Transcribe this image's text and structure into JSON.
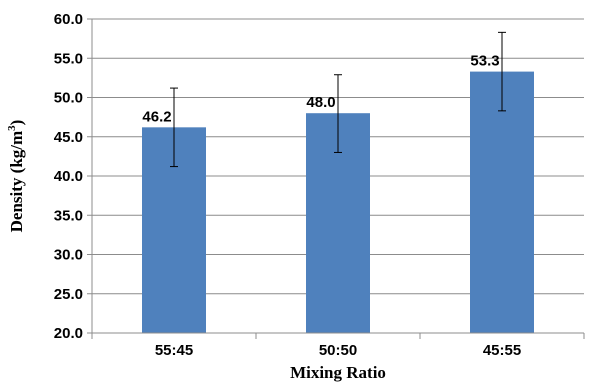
{
  "chart_data": {
    "type": "bar",
    "categories": [
      "55:45",
      "50:50",
      "45:55"
    ],
    "values": [
      46.2,
      48.0,
      53.3
    ],
    "value_labels": [
      "46.2",
      "48.0",
      "53.3"
    ],
    "error_bars": [
      {
        "low": 41.2,
        "high": 51.2
      },
      {
        "low": 43.0,
        "high": 52.9
      },
      {
        "low": 48.3,
        "high": 58.3
      }
    ],
    "xlabel": "Mixing Ratio",
    "ylabel_main": "Density (kg/m",
    "ylabel_sup": "3",
    "ylabel_end": ")",
    "ylim": [
      20.0,
      60.0
    ],
    "yticks": [
      "20.0",
      "25.0",
      "30.0",
      "35.0",
      "40.0",
      "45.0",
      "50.0",
      "55.0",
      "60.0"
    ],
    "grid": true,
    "legend": "none",
    "bar_color": "#4F81BD",
    "grid_color": "#8C8C8C"
  }
}
